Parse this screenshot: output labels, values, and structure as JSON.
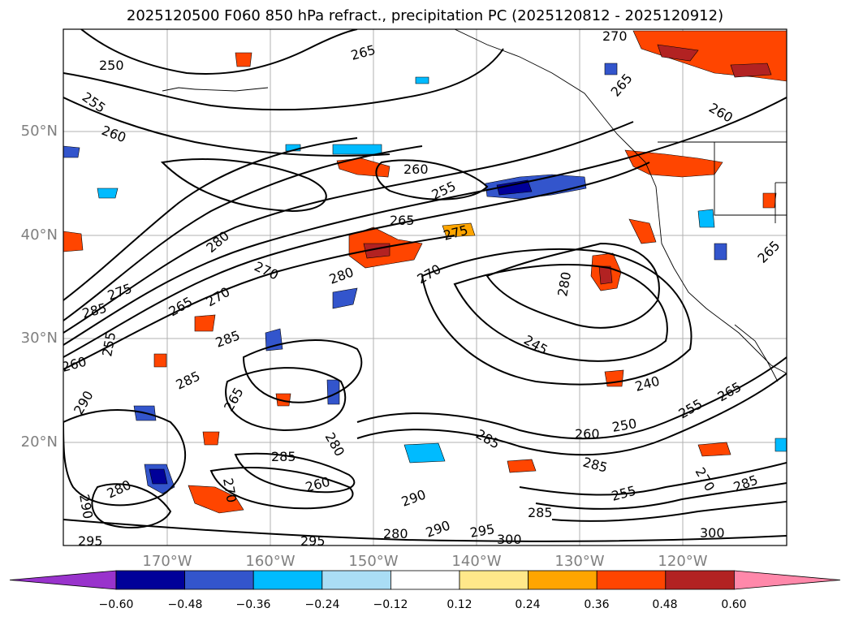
{
  "title": "2025120500 F060 850 hPa refract., precipitation PC (2025120812 - 2025120912)",
  "lat_labels": [
    "50°N",
    "40°N",
    "30°N",
    "20°N"
  ],
  "lon_labels": [
    "170°W",
    "160°W",
    "150°W",
    "140°W",
    "130°W",
    "120°W"
  ],
  "colorbar": {
    "ticks": [
      "−0.60",
      "−0.48",
      "−0.36",
      "−0.24",
      "−0.12",
      "0.12",
      "0.24",
      "0.36",
      "0.48",
      "0.60"
    ],
    "colors": [
      "#9933cc",
      "#000099",
      "#3355cc",
      "#00bbff",
      "#aaddf5",
      "#ffffff",
      "#ffe88a",
      "#ffa500",
      "#ff4500",
      "#b22222",
      "#ff88aa"
    ]
  },
  "contour_labels": [
    {
      "text": "250"
    },
    {
      "text": "255"
    },
    {
      "text": "260"
    },
    {
      "text": "265"
    },
    {
      "text": "270"
    },
    {
      "text": "275"
    },
    {
      "text": "280"
    },
    {
      "text": "285"
    },
    {
      "text": "290"
    },
    {
      "text": "295"
    },
    {
      "text": "300"
    },
    {
      "text": "245"
    },
    {
      "text": "240"
    }
  ]
}
